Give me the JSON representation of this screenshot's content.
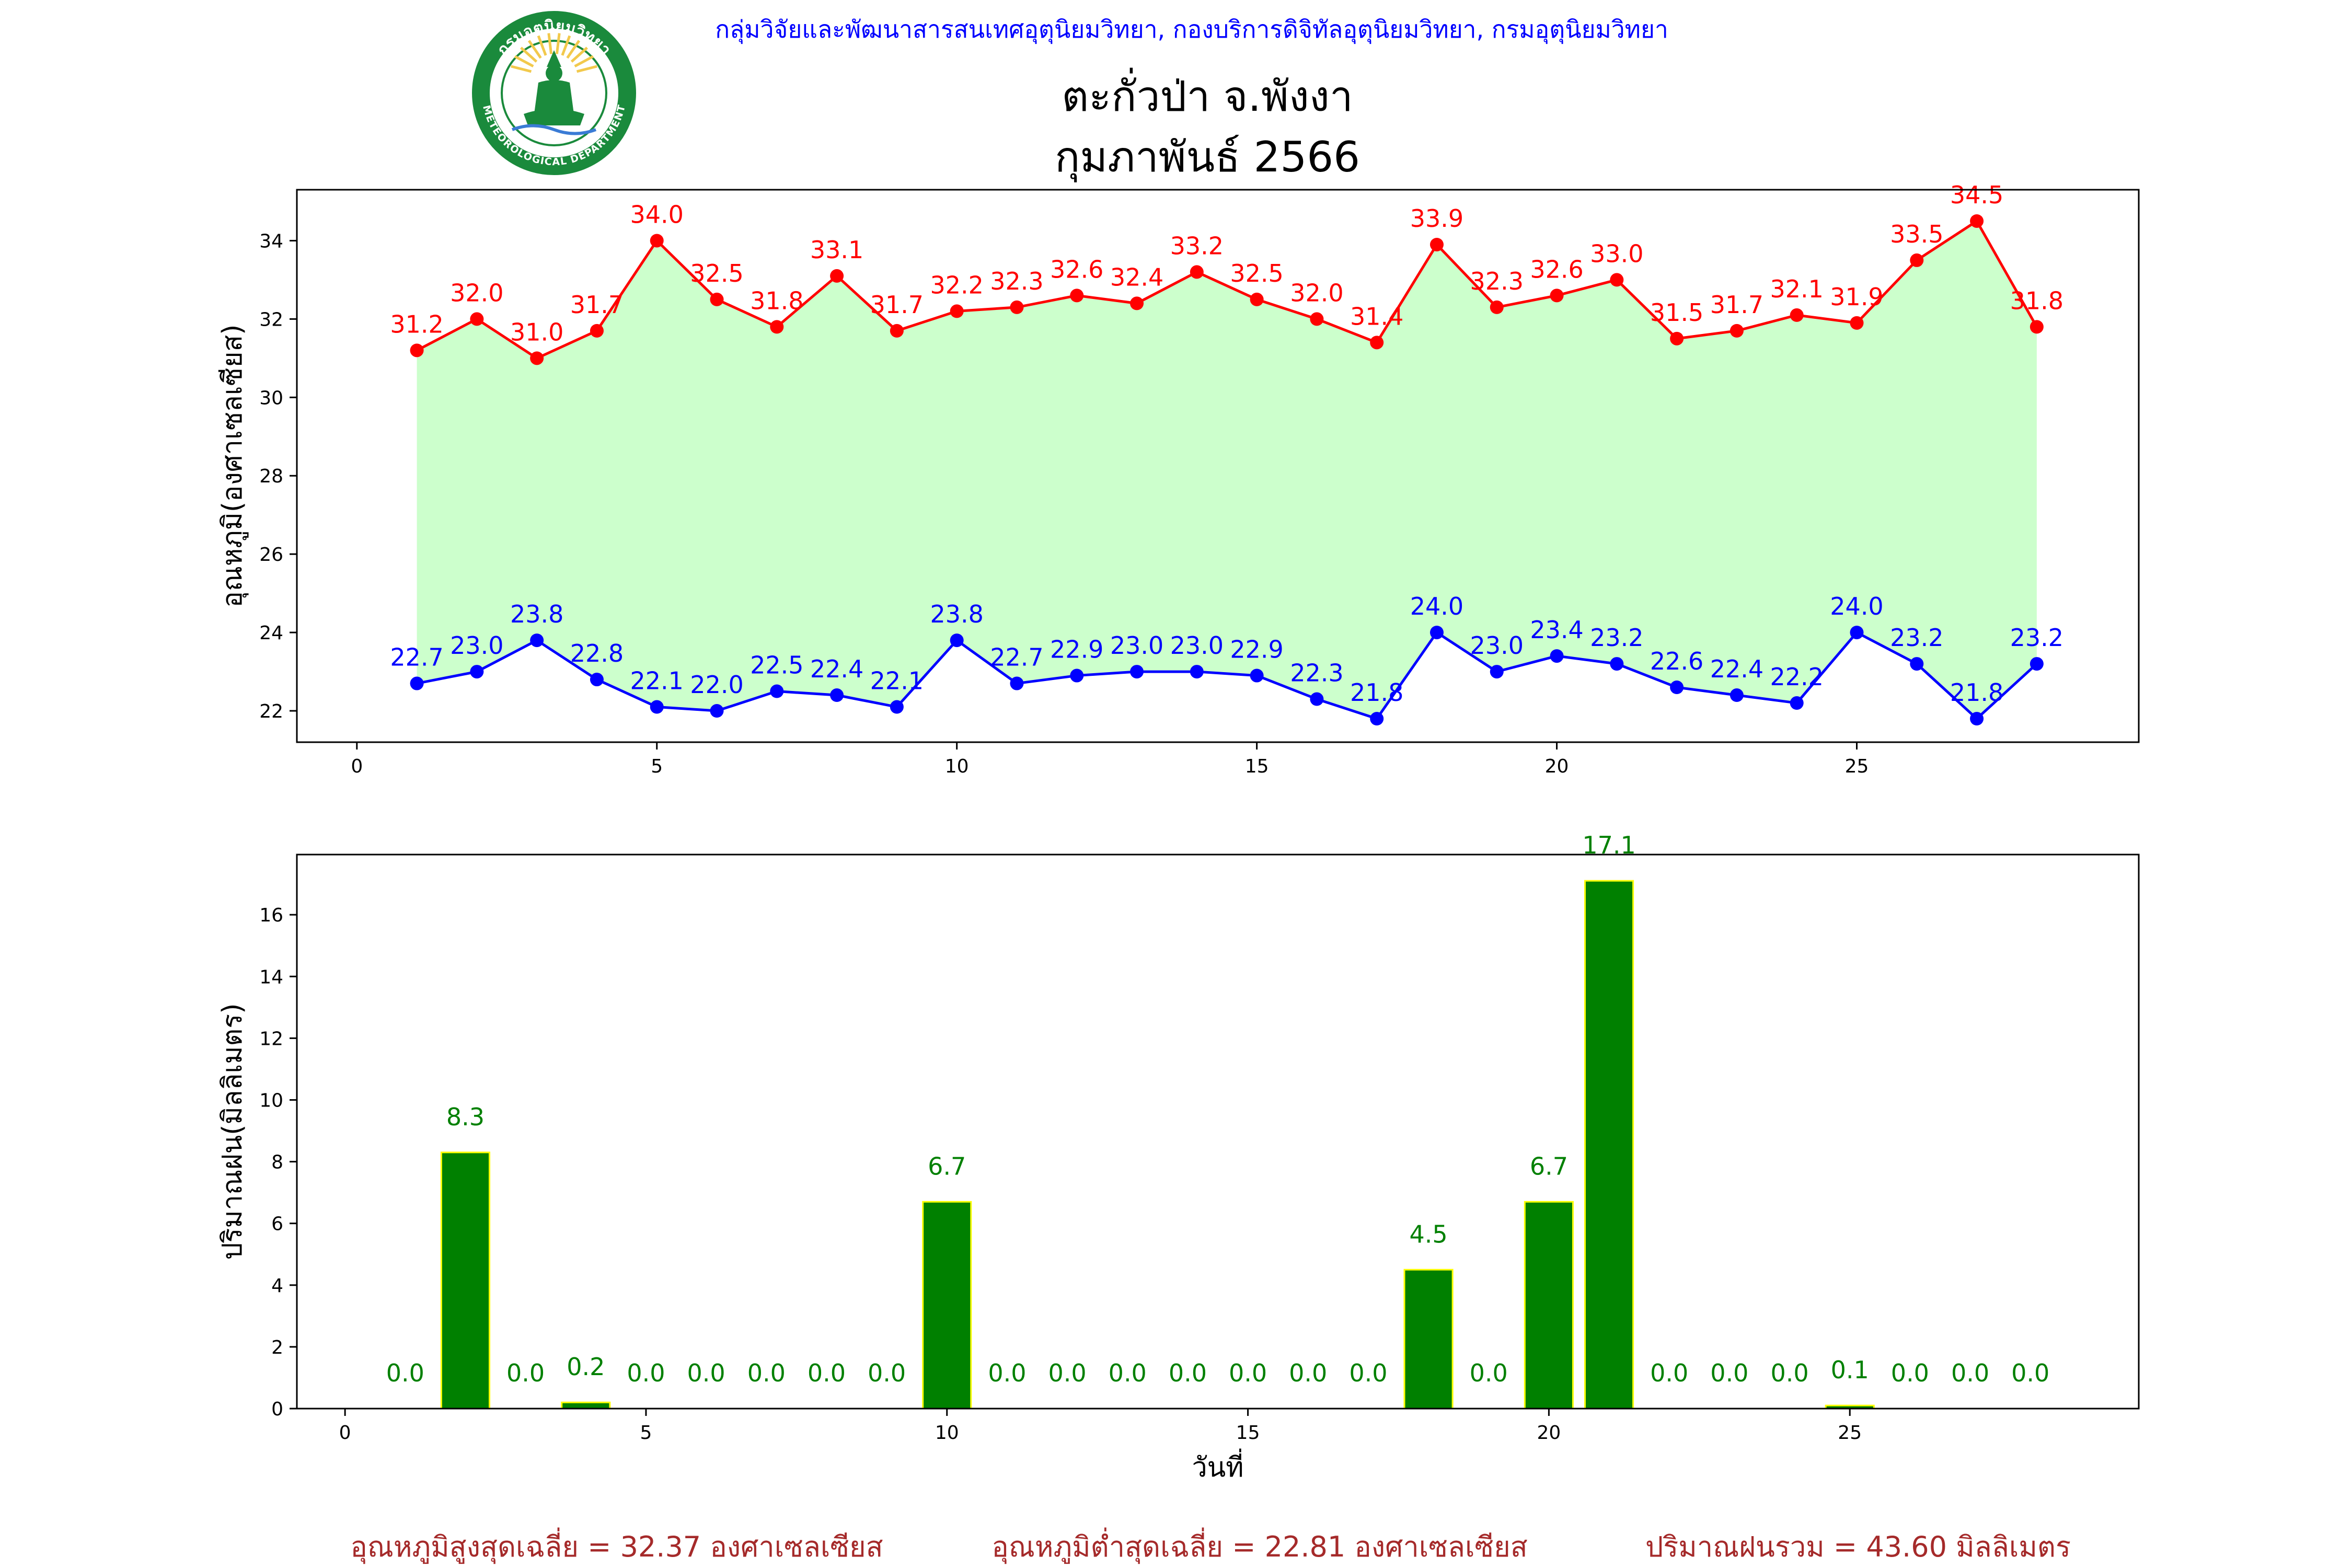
{
  "header": {
    "agency": "กลุ่มวิจัยและพัฒนาสารสนเทศอุตุนิยมวิทยา, กองบริการดิจิทัลอุตุนิยมวิทยา, กรมอุตุนิยมวิทยา",
    "station": "ตะกั่วป่า จ.พังงา",
    "period": "กุมภาพันธ์ 2566"
  },
  "logo": {
    "arc_text": "กรมอุตุนิยมวิทยา",
    "bottom_text": "METEOROLOGICAL DEPARTMENT",
    "ring_color": "#1a8a3c",
    "inner_color": "#f2c94c"
  },
  "chart_data": [
    {
      "type": "line",
      "ylabel": "อุณหภูมิ(องศาเซลเซียส)",
      "xlabel": "",
      "xlim": [
        -1,
        29.7
      ],
      "ylim": [
        21.2,
        35.3
      ],
      "xticks": [
        0,
        5,
        10,
        15,
        20,
        25
      ],
      "yticks": [
        22,
        24,
        26,
        28,
        30,
        32,
        34
      ],
      "fill_between": {
        "color": "#ccffcc"
      },
      "x": [
        1,
        2,
        3,
        4,
        5,
        6,
        7,
        8,
        9,
        10,
        11,
        12,
        13,
        14,
        15,
        16,
        17,
        18,
        19,
        20,
        21,
        22,
        23,
        24,
        25,
        26,
        27,
        28
      ],
      "series": [
        {
          "color": "#ff0000",
          "values": [
            31.2,
            32.0,
            31.0,
            31.7,
            34.0,
            32.5,
            31.8,
            33.1,
            31.7,
            32.2,
            32.3,
            32.6,
            32.4,
            33.2,
            32.5,
            32.0,
            31.4,
            33.9,
            32.3,
            32.6,
            33.0,
            31.5,
            31.7,
            32.1,
            31.9,
            33.5,
            34.5,
            31.8
          ],
          "labels": [
            "31.2",
            "32.0",
            "31.0",
            "31.7",
            "34.0",
            "32.5",
            "31.8",
            "33.1",
            "31.7",
            "32.2",
            "32.3",
            "32.6",
            "32.4",
            "33.2",
            "32.5",
            "32.0",
            "31.4",
            "33.9",
            "32.3",
            "32.6",
            "33.0",
            "31.5",
            "31.7",
            "32.1",
            "31.9",
            "33.5",
            "34.5",
            "31.8"
          ]
        },
        {
          "color": "#0000ff",
          "values": [
            22.7,
            23.0,
            23.8,
            22.8,
            22.1,
            22.0,
            22.5,
            22.4,
            22.1,
            23.8,
            22.7,
            22.9,
            23.0,
            23.0,
            22.9,
            22.3,
            21.8,
            24.0,
            23.0,
            23.4,
            23.2,
            22.6,
            22.4,
            22.2,
            24.0,
            23.2,
            21.8,
            23.2
          ],
          "labels": [
            "22.7",
            "23.0",
            "23.8",
            "22.8",
            "22.1",
            "22.0",
            "22.5",
            "22.4",
            "22.1",
            "23.8",
            "22.7",
            "22.9",
            "23.0",
            "23.0",
            "22.9",
            "22.3",
            "21.8",
            "24.0",
            "23.0",
            "23.4",
            "23.2",
            "22.6",
            "22.4",
            "22.2",
            "24.0",
            "23.2",
            "21.8",
            "23.2"
          ]
        }
      ]
    },
    {
      "type": "bar",
      "ylabel": "ปริมาณฝน(มิลลิเมตร)",
      "xlabel": "วันที่",
      "xlim": [
        -0.8,
        29.8
      ],
      "ylim": [
        0,
        17.95
      ],
      "xticks": [
        0,
        5,
        10,
        15,
        20,
        25
      ],
      "yticks": [
        0,
        2,
        4,
        6,
        8,
        10,
        12,
        14,
        16
      ],
      "bar_color": "#008000",
      "edge_color": "#ffff00",
      "label_color": "#008000",
      "categories": [
        1,
        2,
        3,
        4,
        5,
        6,
        7,
        8,
        9,
        10,
        11,
        12,
        13,
        14,
        15,
        16,
        17,
        18,
        19,
        20,
        21,
        22,
        23,
        24,
        25,
        26,
        27,
        28
      ],
      "values": [
        0.0,
        8.3,
        0.0,
        0.2,
        0.0,
        0.0,
        0.0,
        0.0,
        0.0,
        6.7,
        0.0,
        0.0,
        0.0,
        0.0,
        0.0,
        0.0,
        0.0,
        4.5,
        0.0,
        6.7,
        17.1,
        0.0,
        0.0,
        0.0,
        0.1,
        0.0,
        0.0,
        0.0
      ],
      "labels": [
        "0.0",
        "8.3",
        "0.0",
        "0.2",
        "0.0",
        "0.0",
        "0.0",
        "0.0",
        "0.0",
        "6.7",
        "0.0",
        "0.0",
        "0.0",
        "0.0",
        "0.0",
        "0.0",
        "0.0",
        "4.5",
        "0.0",
        "6.7",
        "17.1",
        "0.0",
        "0.0",
        "0.0",
        "0.1",
        "0.0",
        "0.0",
        "0.0"
      ]
    }
  ],
  "summary": {
    "color": "#a52a2a",
    "items": [
      "อุณหภูมิสูงสุดเฉลี่ย = 32.37 องศาเซลเซียส",
      "อุณหภูมิต่ำสุดเฉลี่ย = 22.81 องศาเซลเซียส",
      "ปริมาณฝนรวม = 43.60 มิลลิเมตร"
    ]
  }
}
